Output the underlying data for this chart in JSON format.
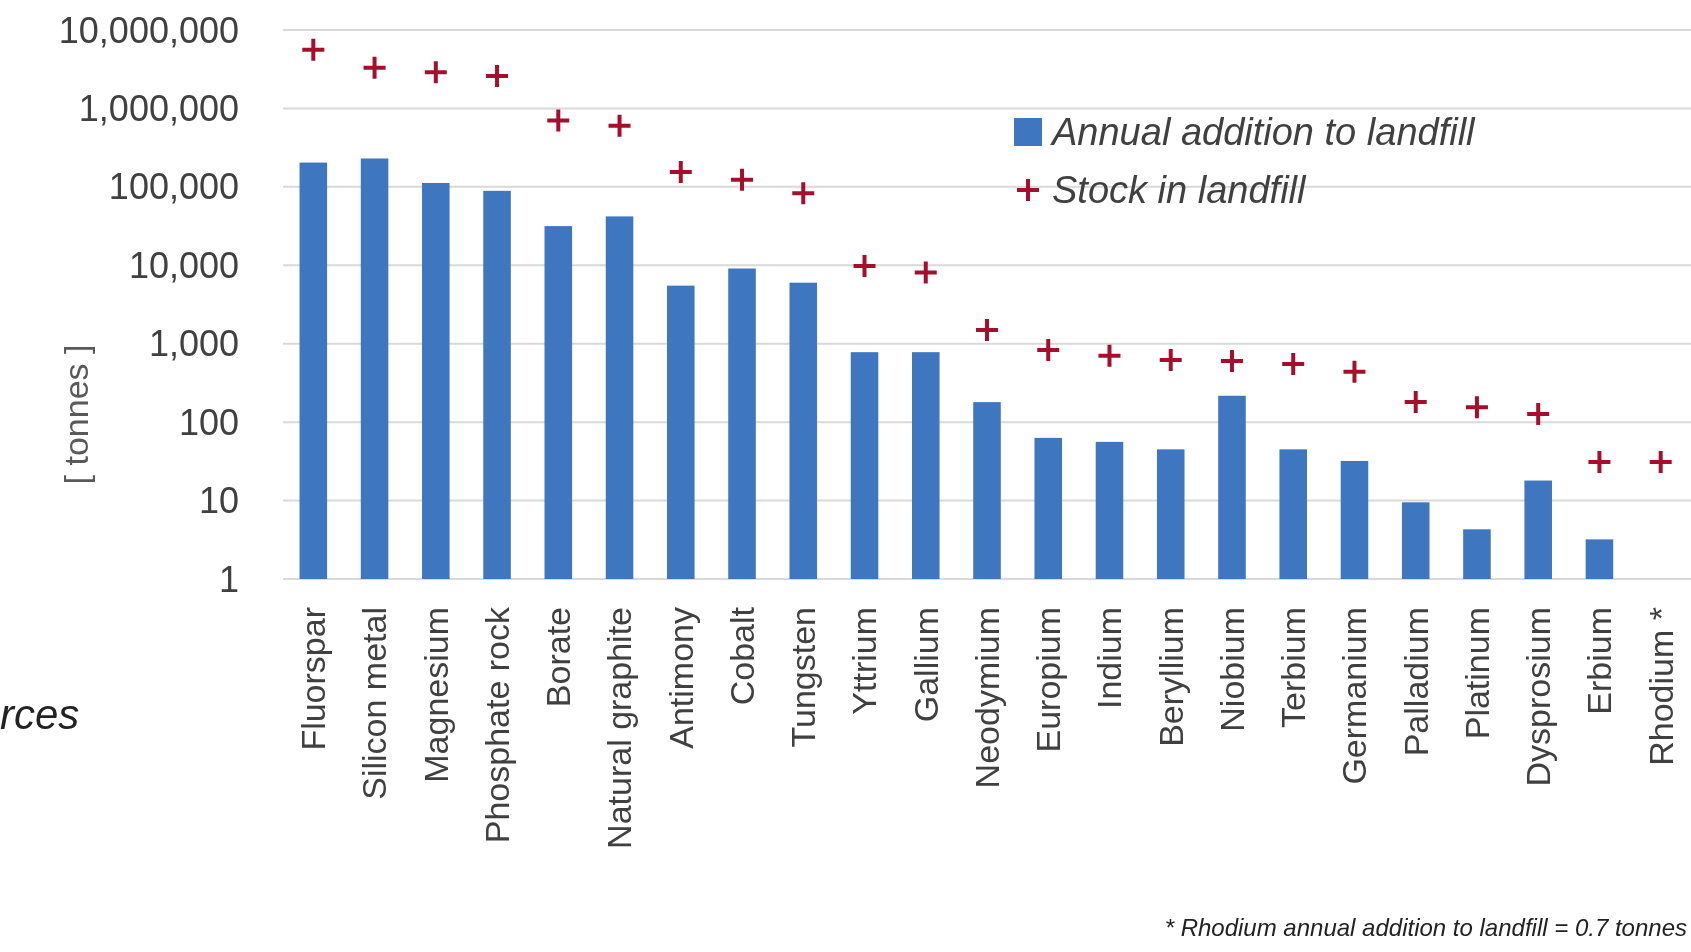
{
  "chart_data": {
    "type": "bar",
    "ylabel": "[ tonnes ]",
    "log": "y",
    "grid": "y",
    "legend": "top right",
    "categories": [
      "Fluorspar",
      "Silicon metal",
      "Magnesium",
      "Phosphate rock",
      "Borate",
      "Natural graphite",
      "Antimony",
      "Cobalt",
      "Tungsten",
      "Yttrium",
      "Gallium",
      "Neodymium",
      "Europium",
      "Indium",
      "Beryllium",
      "Niobium",
      "Terbium",
      "Germanium",
      "Palladium",
      "Platinum",
      "Dysprosium",
      "Erbium",
      "Rhodium *"
    ],
    "ylim": [
      1,
      10000000
    ],
    "yticks": [
      1,
      10,
      100,
      {
        "value": 1000,
        "label": "1,000"
      },
      {
        "value": 10000,
        "label": "10,000"
      },
      {
        "value": 100000,
        "label": "100,000"
      },
      {
        "value": 1000000,
        "label": "1,000,000"
      },
      {
        "value": 10000000,
        "label": "10,000,000"
      }
    ],
    "series": [
      {
        "name": "Annual addition to landfill",
        "color": "#3f76c0",
        "values": [
          204000,
          230000,
          112000,
          89000,
          31600,
          42000,
          5500,
          9100,
          6000,
          780,
          780,
          180,
          63,
          56,
          45,
          217,
          45,
          32,
          9.5,
          4.3,
          18,
          3.2,
          null
        ]
      },
      {
        "name": "Stock in landfill",
        "type": "scatter",
        "marker": "cross",
        "color": "#a50f2d",
        "values": [
          5600000,
          3300000,
          2900000,
          2600000,
          700000,
          600000,
          155000,
          123000,
          83000,
          9800,
          8100,
          1500,
          830,
          700,
          620,
          600,
          550,
          440,
          180,
          155,
          127,
          31,
          31
        ]
      }
    ],
    "annotations": [
      "rces",
      "* Rhodium annual addition to landfill = 0.7 tonnes"
    ]
  }
}
